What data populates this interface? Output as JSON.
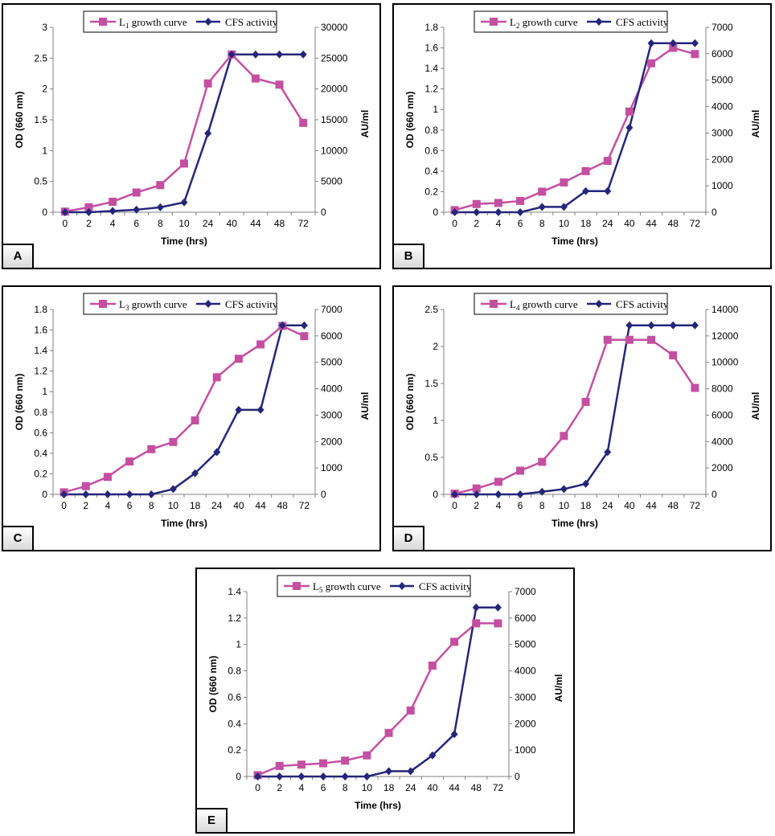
{
  "colors": {
    "growth": "#C44FA1",
    "cfs": "#25267A",
    "axis": "#808080"
  },
  "chart_data": [
    {
      "panel": "A",
      "type": "line",
      "categories": [
        "0",
        "2",
        "4",
        "6",
        "8",
        "10",
        "24",
        "40",
        "44",
        "48",
        "72"
      ],
      "xlabel": "Time (hrs)",
      "ylabel_left": "OD (660 nm)",
      "ylabel_right": "AU/ml",
      "yticks_left": [
        "0",
        "0.5",
        "1",
        "1.5",
        "2",
        "2.5",
        "3"
      ],
      "ylim_left": [
        0,
        3
      ],
      "yticks_right": [
        "0",
        "5000",
        "10000",
        "15000",
        "20000",
        "25000",
        "30000"
      ],
      "ylim_right": [
        0,
        30000
      ],
      "legend_position": "top",
      "series": [
        {
          "name": "growth curve",
          "strain": "L",
          "strain_sub": "1",
          "axis": "left",
          "values": [
            0.01,
            0.08,
            0.17,
            0.32,
            0.44,
            0.79,
            2.09,
            2.56,
            2.17,
            2.07,
            1.45
          ]
        },
        {
          "name": "CFS activity",
          "axis": "right",
          "values": [
            0,
            0,
            200,
            400,
            800,
            1600,
            12800,
            25600,
            25600,
            25600,
            25600
          ]
        }
      ]
    },
    {
      "panel": "B",
      "type": "line",
      "categories": [
        "0",
        "2",
        "4",
        "6",
        "8",
        "10",
        "18",
        "24",
        "40",
        "44",
        "48",
        "72"
      ],
      "xlabel": "Time (hrs)",
      "ylabel_left": "OD (660 nm)",
      "ylabel_right": "AU/ml",
      "yticks_left": [
        "0",
        "0.2",
        "0.4",
        "0.6",
        "0.8",
        "1",
        "1.2",
        "1.4",
        "1.6",
        "1.8"
      ],
      "ylim_left": [
        0,
        1.8
      ],
      "yticks_right": [
        "0",
        "1000",
        "2000",
        "3000",
        "4000",
        "5000",
        "6000",
        "7000"
      ],
      "ylim_right": [
        0,
        7000
      ],
      "legend_position": "top",
      "series": [
        {
          "name": "growth curve",
          "strain": "L",
          "strain_sub": "2",
          "axis": "left",
          "values": [
            0.02,
            0.08,
            0.09,
            0.11,
            0.2,
            0.29,
            0.4,
            0.5,
            0.98,
            1.45,
            1.6,
            1.54
          ]
        },
        {
          "name": "CFS activity",
          "axis": "right",
          "values": [
            0,
            0,
            0,
            0,
            200,
            200,
            800,
            800,
            3200,
            6400,
            6400,
            6400
          ]
        }
      ]
    },
    {
      "panel": "C",
      "type": "line",
      "categories": [
        "0",
        "2",
        "4",
        "6",
        "8",
        "10",
        "18",
        "24",
        "40",
        "44",
        "48",
        "72"
      ],
      "xlabel": "Time (hrs)",
      "ylabel_left": "OD (660 nm)",
      "ylabel_right": "AU/ml",
      "yticks_left": [
        "0",
        "0.2",
        "0.4",
        "0.6",
        "0.8",
        "1",
        "1.2",
        "1.4",
        "1.6",
        "1.8"
      ],
      "ylim_left": [
        0,
        1.8
      ],
      "yticks_right": [
        "0",
        "1000",
        "2000",
        "3000",
        "4000",
        "5000",
        "6000",
        "7000"
      ],
      "ylim_right": [
        0,
        7000
      ],
      "legend_position": "top",
      "series": [
        {
          "name": "growth curve",
          "strain": "L",
          "strain_sub": "3",
          "axis": "left",
          "values": [
            0.02,
            0.08,
            0.17,
            0.32,
            0.44,
            0.51,
            0.72,
            1.14,
            1.32,
            1.46,
            1.64,
            1.54
          ]
        },
        {
          "name": "CFS activity",
          "axis": "right",
          "values": [
            0,
            0,
            0,
            0,
            0,
            200,
            800,
            1600,
            3200,
            3200,
            6400,
            6400
          ]
        }
      ]
    },
    {
      "panel": "D",
      "type": "line",
      "categories": [
        "0",
        "2",
        "4",
        "6",
        "8",
        "10",
        "18",
        "24",
        "40",
        "44",
        "48",
        "72"
      ],
      "xlabel": "Time (hrs)",
      "ylabel_left": "OD (660 nm)",
      "ylabel_right": "AU/ml",
      "yticks_left": [
        "0",
        "0.5",
        "1",
        "1.5",
        "2",
        "2.5"
      ],
      "ylim_left": [
        0,
        2.5
      ],
      "yticks_right": [
        "0",
        "2000",
        "4000",
        "6000",
        "8000",
        "10000",
        "12000",
        "14000"
      ],
      "ylim_right": [
        0,
        14000
      ],
      "legend_position": "top",
      "series": [
        {
          "name": "growth curve",
          "strain": "L",
          "strain_sub": "4",
          "axis": "left",
          "values": [
            0.01,
            0.08,
            0.17,
            0.32,
            0.44,
            0.79,
            1.25,
            2.09,
            2.09,
            2.09,
            1.88,
            1.44
          ]
        },
        {
          "name": "CFS activity",
          "axis": "right",
          "values": [
            0,
            0,
            0,
            0,
            200,
            400,
            800,
            3200,
            12800,
            12800,
            12800,
            12800
          ]
        }
      ]
    },
    {
      "panel": "E",
      "type": "line",
      "categories": [
        "0",
        "2",
        "4",
        "6",
        "8",
        "10",
        "18",
        "24",
        "40",
        "44",
        "48",
        "72"
      ],
      "xlabel": "Time (hrs)",
      "ylabel_left": "OD (660 nm)",
      "ylabel_right": "AU/ml",
      "yticks_left": [
        "0",
        "0.2",
        "0.4",
        "0.6",
        "0.8",
        "1",
        "1.2",
        "1.4"
      ],
      "ylim_left": [
        0,
        1.4
      ],
      "yticks_right": [
        "0",
        "1000",
        "2000",
        "3000",
        "4000",
        "5000",
        "6000",
        "7000"
      ],
      "ylim_right": [
        0,
        7000
      ],
      "legend_position": "top",
      "series": [
        {
          "name": "growth curve",
          "strain": "L",
          "strain_sub": "5",
          "axis": "left",
          "values": [
            0.01,
            0.08,
            0.09,
            0.1,
            0.12,
            0.16,
            0.33,
            0.5,
            0.84,
            1.02,
            1.16,
            1.16
          ]
        },
        {
          "name": "CFS activity",
          "axis": "right",
          "values": [
            0,
            0,
            0,
            0,
            0,
            0,
            200,
            200,
            800,
            1600,
            6400,
            6400
          ]
        }
      ]
    }
  ]
}
